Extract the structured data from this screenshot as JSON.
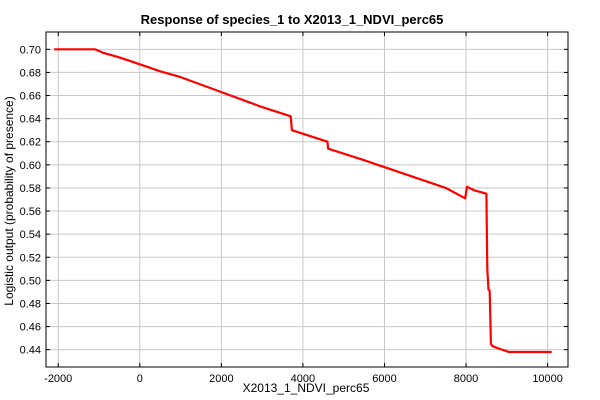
{
  "chart_data": {
    "type": "line",
    "title": "Response of species_1 to X2013_1_NDVI_perc65",
    "xlabel": "X2013_1_NDVI_perc65",
    "ylabel": "Logistic output (probability of presence)",
    "xlim": [
      -2300,
      10500
    ],
    "ylim": [
      0.425,
      0.715
    ],
    "xticks": [
      -2000,
      0,
      2000,
      4000,
      6000,
      8000,
      10000
    ],
    "xtick_labels": [
      "-2000",
      "0",
      "2000",
      "4000",
      "6000",
      "8000",
      "10000"
    ],
    "yticks": [
      0.44,
      0.46,
      0.48,
      0.5,
      0.52,
      0.54,
      0.56,
      0.58,
      0.6,
      0.62,
      0.64,
      0.66,
      0.68,
      0.7
    ],
    "ytick_labels": [
      "0.44",
      "0.46",
      "0.48",
      "0.50",
      "0.52",
      "0.54",
      "0.56",
      "0.58",
      "0.60",
      "0.62",
      "0.64",
      "0.66",
      "0.68",
      "0.70"
    ],
    "grid": true,
    "line_color": "#ff0000",
    "series": [
      {
        "x": [
          -2100,
          -1100,
          -900,
          -500,
          0,
          500,
          1000,
          2000,
          3000,
          3700,
          3730,
          4600,
          4620,
          5500,
          6500,
          7500,
          7980,
          8020,
          8200,
          8500,
          8520,
          8550,
          8580,
          8610,
          8650,
          8800,
          9050,
          9500,
          10100
        ],
        "y": [
          0.7,
          0.7,
          0.697,
          0.693,
          0.687,
          0.681,
          0.676,
          0.663,
          0.65,
          0.642,
          0.63,
          0.62,
          0.614,
          0.604,
          0.592,
          0.58,
          0.571,
          0.581,
          0.578,
          0.575,
          0.51,
          0.492,
          0.491,
          0.445,
          0.443,
          0.441,
          0.438,
          0.438,
          0.438
        ]
      }
    ]
  }
}
